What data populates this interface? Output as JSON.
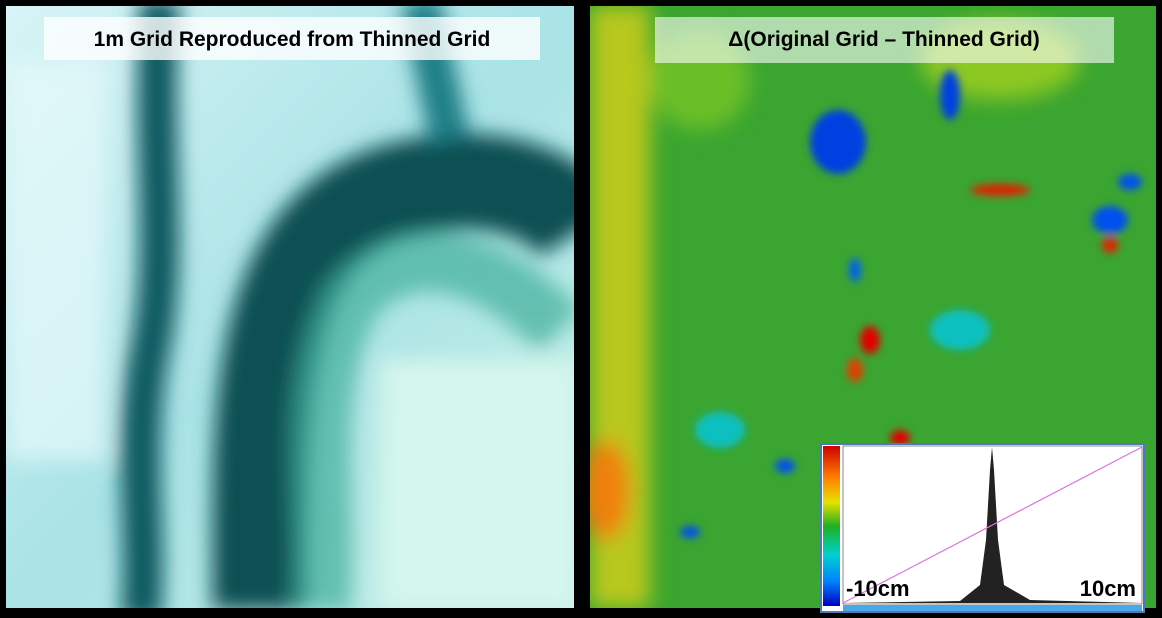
{
  "left_panel": {
    "title": "1m Grid Reproduced from Thinned Grid"
  },
  "right_panel": {
    "title": "Δ(Original Grid – Thinned Grid)",
    "inset": {
      "min_label": "-10cm",
      "max_label": "10cm"
    }
  }
}
